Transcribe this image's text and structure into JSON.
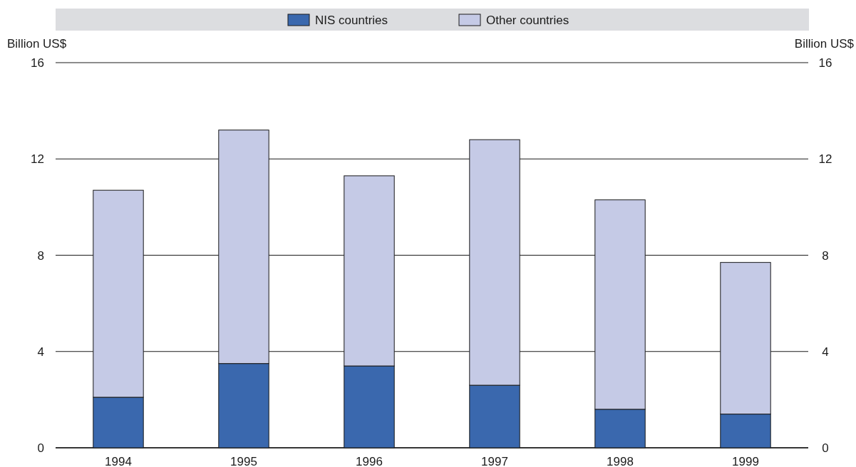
{
  "chart_data": {
    "type": "bar",
    "stacked": true,
    "categories": [
      "1994",
      "1995",
      "1996",
      "1997",
      "1998",
      "1999"
    ],
    "series": [
      {
        "name": "NIS countries",
        "color": "#3a68ae",
        "values": [
          2.1,
          3.5,
          3.4,
          2.6,
          1.6,
          1.4
        ]
      },
      {
        "name": "Other countries",
        "color": "#c5cae6",
        "values": [
          8.6,
          9.7,
          7.9,
          10.2,
          8.7,
          6.3
        ]
      }
    ],
    "ylabel": "Billion US$",
    "y2label": "Billion US$",
    "ylim": [
      0,
      16
    ],
    "yticks": [
      0,
      4,
      8,
      12,
      16
    ],
    "y2lim": [
      0,
      16
    ],
    "y2ticks": [
      0,
      4,
      8,
      12,
      16
    ],
    "grid": "y",
    "legend": "top"
  }
}
